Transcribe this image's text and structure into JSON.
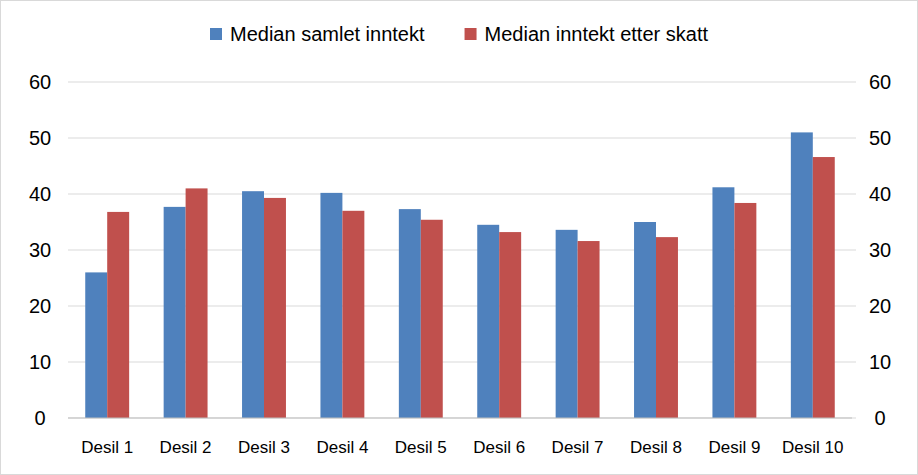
{
  "chart_data": {
    "type": "bar",
    "categories": [
      "Desil 1",
      "Desil 2",
      "Desil 3",
      "Desil 4",
      "Desil 5",
      "Desil 6",
      "Desil 7",
      "Desil 8",
      "Desil 9",
      "Desil 10"
    ],
    "series": [
      {
        "name": "Median samlet inntekt",
        "color": "#4f81bd",
        "values": [
          26,
          37.7,
          40.5,
          40.2,
          37.3,
          34.5,
          33.6,
          35,
          41.2,
          51
        ]
      },
      {
        "name": "Median inntekt etter skatt",
        "color": "#c0504d",
        "values": [
          36.8,
          41,
          39.3,
          37,
          35.4,
          33.2,
          31.6,
          32.3,
          38.4,
          46.6
        ]
      }
    ],
    "ylim": [
      0,
      60
    ],
    "yticks": [
      0,
      10,
      20,
      30,
      40,
      50,
      60
    ],
    "y2lim": [
      0,
      60
    ],
    "y2ticks": [
      0,
      10,
      20,
      30,
      40,
      50,
      60
    ],
    "grid": true,
    "legend": "top"
  }
}
